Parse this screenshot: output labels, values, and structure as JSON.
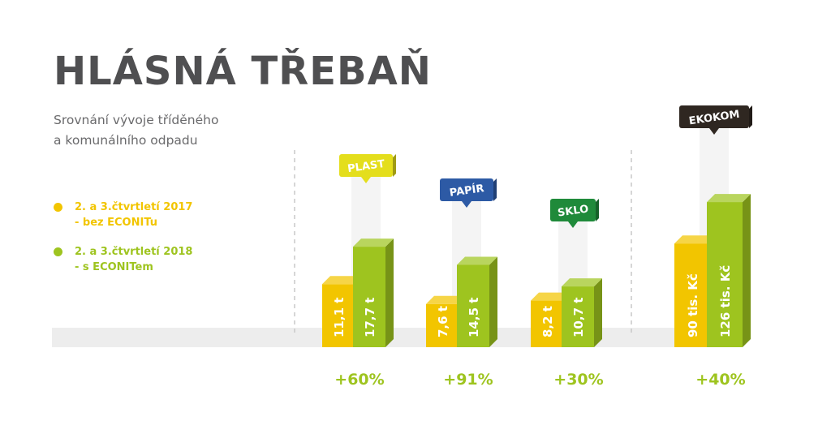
{
  "title": "HLÁSNÁ TŘEBAŇ",
  "subtitle_line1": "Srovnání vývoje tříděného",
  "subtitle_line2": "a komunálního odpadu",
  "colors": {
    "series_2017": "#f2c500",
    "series_2018": "#9ec41f",
    "title": "#4f4f51",
    "subtitle": "#6a6a6c",
    "plast_tag": "#e4de1c",
    "papir_tag": "#2d5aa5",
    "sklo_tag": "#1f8a3a",
    "ekokom_tag": "#2f2721"
  },
  "chart_data": {
    "type": "bar",
    "legend_position": "left",
    "grid": false,
    "series": [
      {
        "name": "2. a 3.čtvrtletí 2017 - bez ECONITu",
        "color": "#f2c500"
      },
      {
        "name": "2. a 3.čtvrtletí 2018 - s ECONITem",
        "color": "#9ec41f"
      }
    ],
    "groups": [
      {
        "tag": "PLAST",
        "tag_color": "#e4de1c",
        "tag_text_color": "#ffffff",
        "tag_icon": "speech-bubble-icon",
        "values": [
          11.1,
          17.7
        ],
        "labels": [
          "11,1 t",
          "17,7 t"
        ],
        "change": "+60%"
      },
      {
        "tag": "PAPÍR",
        "tag_color": "#2d5aa5",
        "tag_text_color": "#ffffff",
        "tag_icon": "speech-bubble-icon",
        "values": [
          7.6,
          14.5
        ],
        "labels": [
          "7,6 t",
          "14,5 t"
        ],
        "change": "+91%"
      },
      {
        "tag": "SKLO",
        "tag_color": "#1f8a3a",
        "tag_text_color": "#ffffff",
        "tag_icon": "speech-bubble-icon",
        "values": [
          8.2,
          10.7
        ],
        "labels": [
          "8,2 t",
          "10,7 t"
        ],
        "change": "+30%"
      },
      {
        "tag": "EKOKOM",
        "tag_color": "#2f2721",
        "tag_text_color": "#ffffff",
        "tag_icon": "speech-bubble-icon",
        "values": [
          90,
          126
        ],
        "labels": [
          "90 tis. Kč",
          "126 tis. Kč"
        ],
        "change": "+40%"
      }
    ]
  }
}
